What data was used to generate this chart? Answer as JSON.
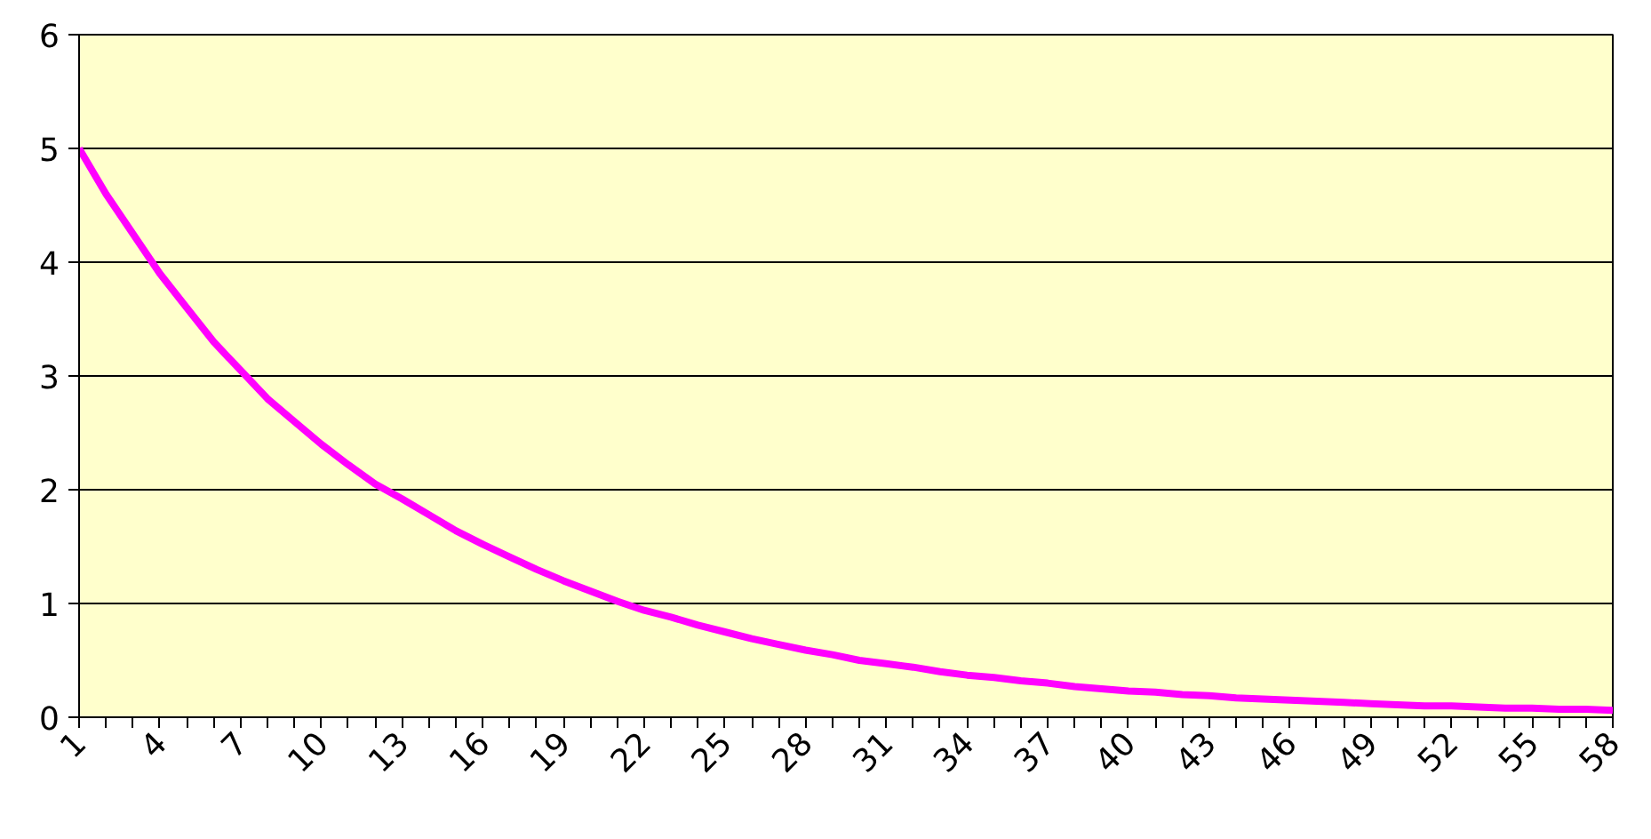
{
  "chart_data": {
    "type": "line",
    "categories": [
      "1",
      null,
      null,
      "4",
      null,
      null,
      "7",
      null,
      null,
      "10",
      null,
      null,
      "13",
      null,
      null,
      "16",
      null,
      null,
      "19",
      null,
      null,
      "22",
      null,
      null,
      "25",
      null,
      null,
      "28",
      null,
      null,
      "31",
      null,
      null,
      "34",
      null,
      null,
      "37",
      null,
      null,
      "40",
      null,
      null,
      "43",
      null,
      null,
      "46",
      null,
      null,
      "49",
      null,
      null,
      "52",
      null,
      null,
      "55",
      null,
      null,
      "58"
    ],
    "series": [
      {
        "color": "#ff00ff",
        "values": [
          5,
          4.6,
          4.25,
          3.9,
          3.6,
          3.3,
          3.05,
          2.8,
          2.6,
          2.4,
          2.22,
          2.05,
          1.92,
          1.78,
          1.64,
          1.52,
          1.41,
          1.3,
          1.2,
          1.11,
          1.02,
          0.94,
          0.88,
          0.81,
          0.75,
          0.69,
          0.64,
          0.59,
          0.55,
          0.5,
          0.47,
          0.44,
          0.4,
          0.37,
          0.35,
          0.32,
          0.3,
          0.27,
          0.25,
          0.23,
          0.22,
          0.2,
          0.19,
          0.17,
          0.16,
          0.15,
          0.14,
          0.13,
          0.12,
          0.11,
          0.1,
          0.1,
          0.09,
          0.08,
          0.08,
          0.07,
          0.07,
          0.06
        ]
      }
    ],
    "ylim": [
      0,
      6
    ],
    "yticks": [
      0,
      1,
      2,
      3,
      4,
      5,
      6
    ],
    "grid": "y",
    "line_style": "solid"
  }
}
